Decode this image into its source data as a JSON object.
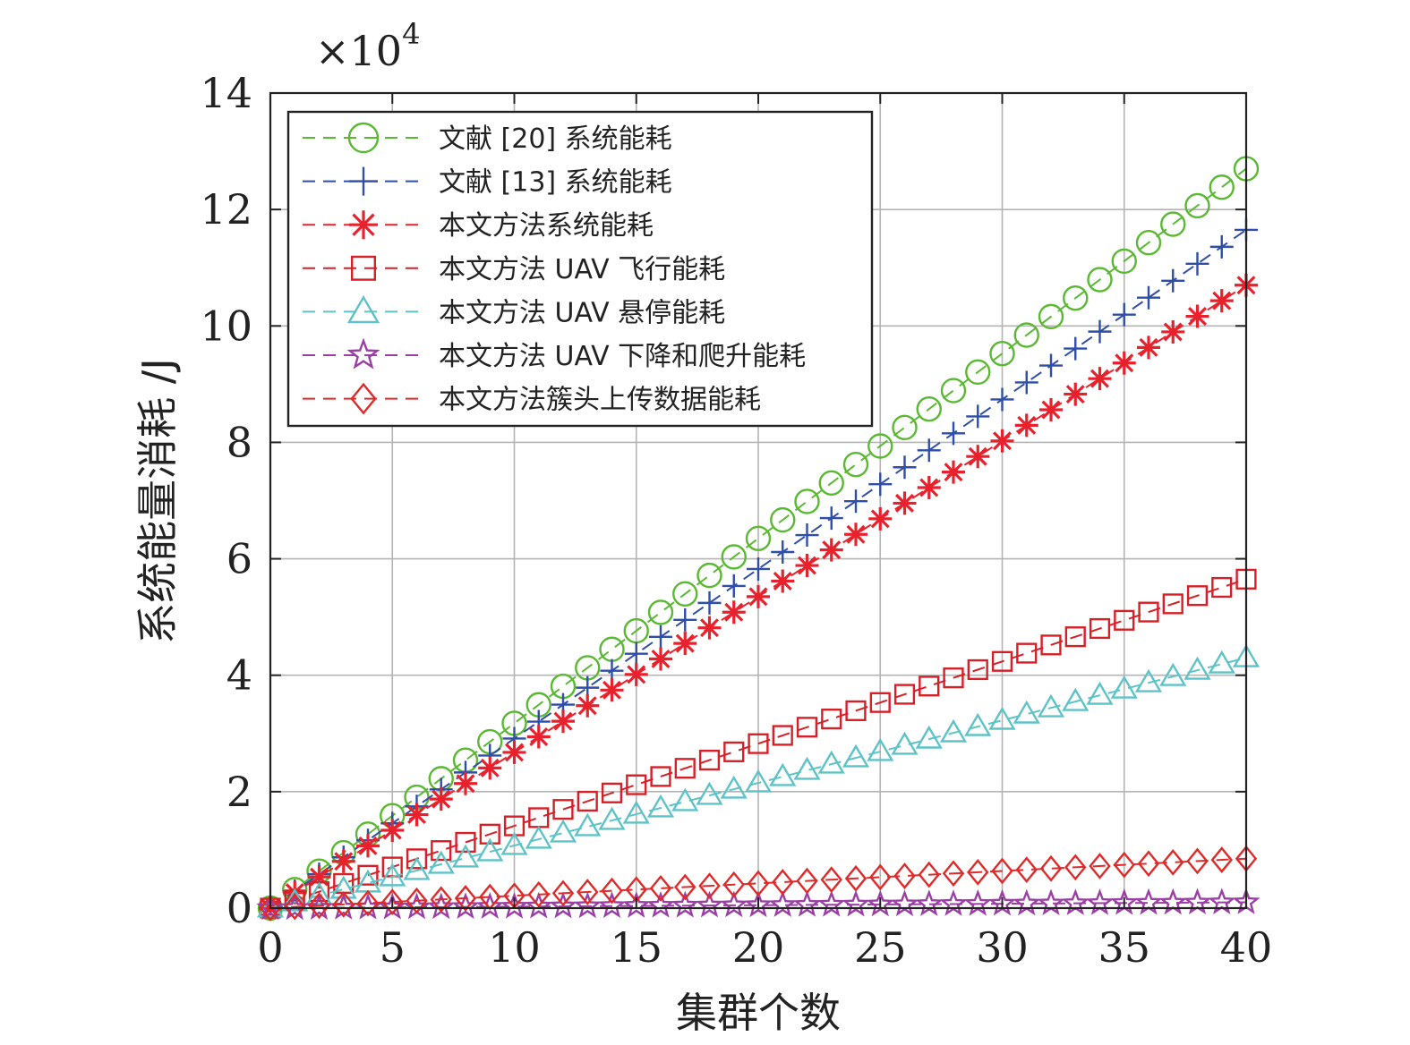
{
  "chart_data": {
    "type": "line",
    "xlabel": "集群个数",
    "ylabel": "系统能量消耗 /J",
    "xlim": [
      0,
      40
    ],
    "ylim": [
      0,
      14
    ],
    "x_ticks": [
      "0",
      "5",
      "10",
      "15",
      "20",
      "25",
      "30",
      "35",
      "40"
    ],
    "y_ticks": [
      "0",
      "2",
      "4",
      "6",
      "8",
      "10",
      "12",
      "14"
    ],
    "y_multiplier": {
      "base": "×10",
      "exponent": "4"
    },
    "grid": true,
    "legend_position": "top-left",
    "series": [
      {
        "name": "文献 [20] 系统能耗",
        "color": "#5ab832",
        "marker": "circle",
        "start": 0,
        "end": 12.7
      },
      {
        "name": "文献 [13] 系统能耗",
        "color": "#2f4ea8",
        "marker": "plus",
        "start": 0,
        "end": 11.65
      },
      {
        "name": "本文方法系统能耗",
        "color": "#e8222d",
        "marker": "asterisk",
        "start": 0,
        "end": 10.7
      },
      {
        "name": "本文方法 UAV 飞行能耗",
        "color": "#d62027",
        "marker": "square",
        "start": 0,
        "end": 5.65
      },
      {
        "name": "本文方法 UAV 悬停能耗",
        "color": "#5ec3c7",
        "marker": "triangle",
        "start": 0,
        "end": 4.3
      },
      {
        "name": "本文方法 UAV 下降和爬升能耗",
        "color": "#9b3fa6",
        "marker": "star",
        "start": 0,
        "end": 0.1
      },
      {
        "name": "本文方法簇头上传数据能耗",
        "color": "#e02a2a",
        "marker": "diamond",
        "start": 0,
        "end": 0.85
      }
    ]
  }
}
